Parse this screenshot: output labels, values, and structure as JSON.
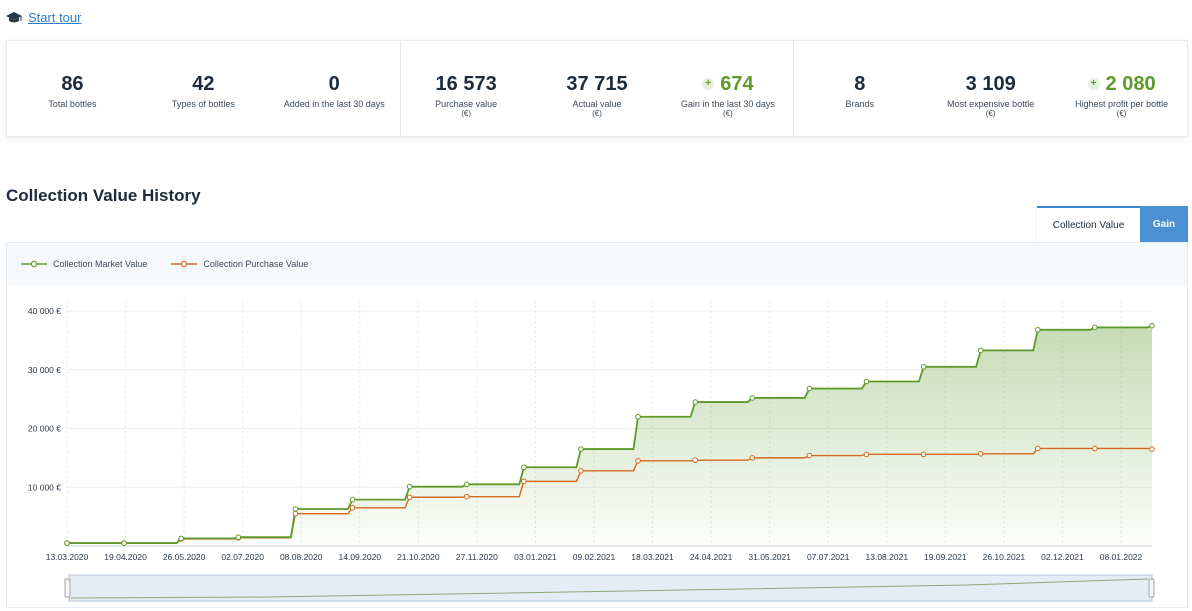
{
  "tour": {
    "label": "Start tour",
    "icon": "graduation-cap-icon"
  },
  "stats": [
    [
      {
        "value": "86",
        "label": "Total bottles",
        "unit": ""
      },
      {
        "value": "42",
        "label": "Types of bottles",
        "unit": ""
      },
      {
        "value": "0",
        "label": "Added in the last 30 days",
        "unit": ""
      }
    ],
    [
      {
        "value": "16 573",
        "label": "Purchase value",
        "unit": "(€)"
      },
      {
        "value": "37 715",
        "label": "Actual value",
        "unit": "(€)"
      },
      {
        "value": "674",
        "label": "Gain in the last 30 days",
        "unit": "(€)",
        "gain": true
      }
    ],
    [
      {
        "value": "8",
        "label": "Brands",
        "unit": ""
      },
      {
        "value": "3 109",
        "label": "Most expensive bottle",
        "unit": "(€)"
      },
      {
        "value": "2 080",
        "label": "Highest profit per bottle",
        "unit": "(€)",
        "gain": true
      }
    ]
  ],
  "section_title": "Collection Value History",
  "toggle": {
    "active": "Collection Value",
    "inactive": "Gain"
  },
  "colors": {
    "market": "#5e9a2a",
    "purchase": "#d2691e",
    "accent": "#4a90d2"
  },
  "chart_data": {
    "type": "line",
    "x_ticks": [
      "13.03.2020",
      "19.04.2020",
      "26.05.2020",
      "02.07.2020",
      "08.08.2020",
      "14.09.2020",
      "21.10.2020",
      "27.11.2020",
      "03.01.2021",
      "09.02.2021",
      "18.03.2021",
      "24.04.2021",
      "31.05.2021",
      "07.07.2021",
      "13.08.2021",
      "19.09.2021",
      "26.10.2021",
      "02.12.2021",
      "08.01.2022"
    ],
    "y_ticks": [
      "10 000 €",
      "20 000 €",
      "30 000 €",
      "40 000 €"
    ],
    "ylim": [
      0,
      40000
    ],
    "series": [
      {
        "name": "Collection Market Value",
        "values": [
          500,
          500,
          1300,
          1500,
          6300,
          7900,
          10100,
          10500,
          13400,
          16500,
          22000,
          24500,
          25200,
          26800,
          28000,
          30500,
          33300,
          36800,
          37200,
          37500
        ]
      },
      {
        "name": "Collection Purchase Value",
        "values": [
          500,
          500,
          1200,
          1400,
          5500,
          6500,
          8300,
          8400,
          11000,
          12800,
          14500,
          14600,
          15000,
          15400,
          15600,
          15600,
          15700,
          16600,
          16600,
          16500
        ]
      }
    ]
  }
}
